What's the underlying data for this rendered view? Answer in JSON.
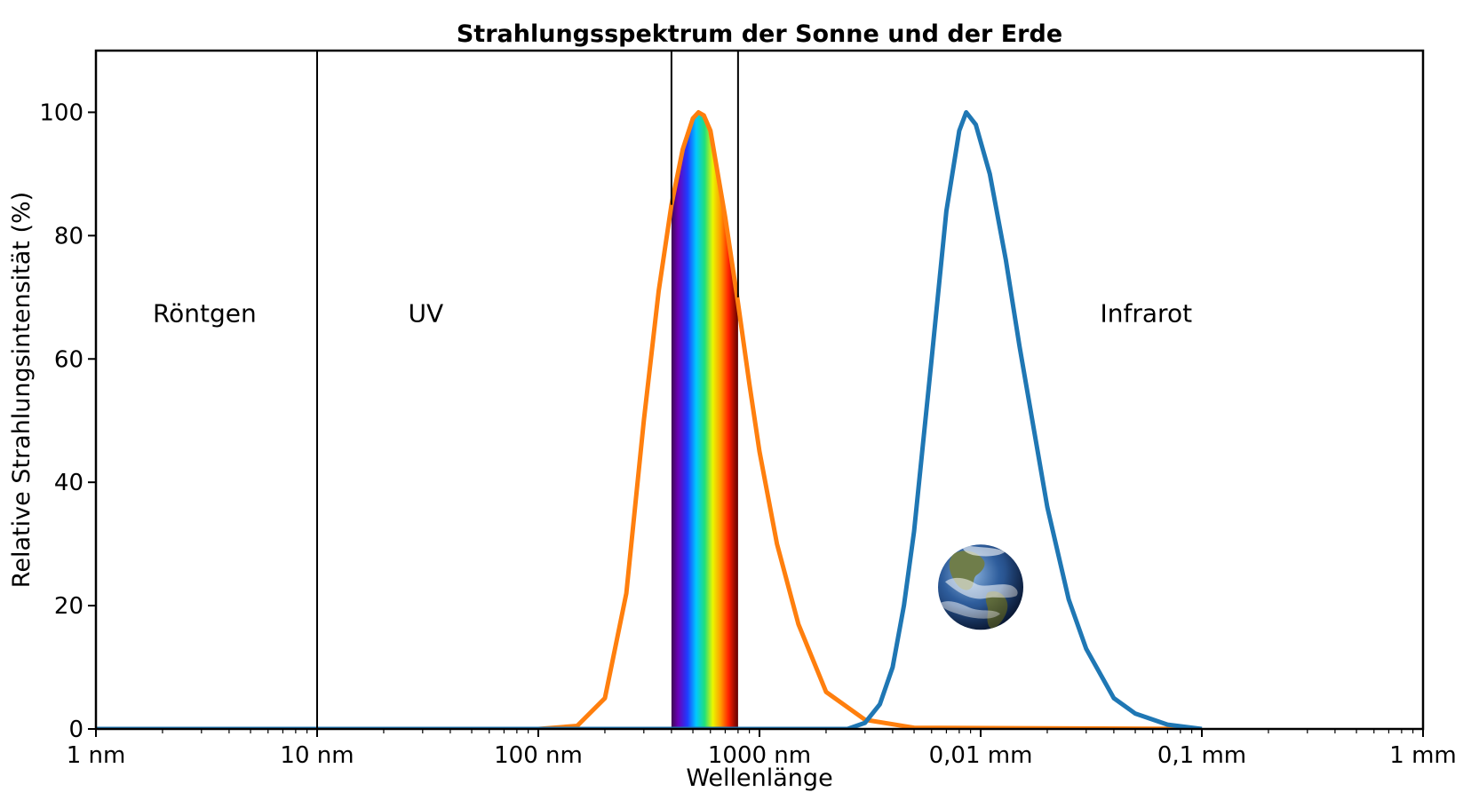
{
  "chart_data": {
    "type": "line",
    "title": "Strahlungsspektrum der Sonne und der Erde",
    "xlabel": "Wellenlänge",
    "ylabel": "Relative Strahlungsintensität (%)",
    "x_scale": "log",
    "x_unit": "nm",
    "xlim": [
      1,
      1000000
    ],
    "ylim": [
      0,
      110
    ],
    "grid": false,
    "x_ticks": [
      {
        "value": 1,
        "label": "1 nm"
      },
      {
        "value": 10,
        "label": "10 nm"
      },
      {
        "value": 100,
        "label": "100 nm"
      },
      {
        "value": 1000,
        "label": "1000 nm"
      },
      {
        "value": 10000,
        "label": "0,01 mm"
      },
      {
        "value": 100000,
        "label": "0,1 mm"
      },
      {
        "value": 1000000,
        "label": "1 mm"
      }
    ],
    "y_ticks": [
      0,
      20,
      40,
      60,
      80,
      100
    ],
    "series": [
      {
        "key": "sun",
        "color": "#ff7f0e",
        "points": [
          [
            1,
            0
          ],
          [
            100,
            0
          ],
          [
            150,
            0.5
          ],
          [
            200,
            5
          ],
          [
            250,
            22
          ],
          [
            300,
            50
          ],
          [
            350,
            71
          ],
          [
            400,
            85
          ],
          [
            450,
            94
          ],
          [
            500,
            99
          ],
          [
            530,
            100
          ],
          [
            560,
            99.5
          ],
          [
            600,
            97
          ],
          [
            700,
            83
          ],
          [
            800,
            69
          ],
          [
            900,
            56
          ],
          [
            1000,
            45
          ],
          [
            1200,
            30
          ],
          [
            1500,
            17
          ],
          [
            2000,
            6
          ],
          [
            3000,
            1.5
          ],
          [
            5000,
            0.2
          ],
          [
            100000,
            0
          ]
        ]
      },
      {
        "key": "earth",
        "color": "#1f77b4",
        "points": [
          [
            1,
            0
          ],
          [
            2500,
            0
          ],
          [
            3000,
            1
          ],
          [
            3500,
            4
          ],
          [
            4000,
            10
          ],
          [
            4500,
            20
          ],
          [
            5000,
            32
          ],
          [
            6000,
            60
          ],
          [
            7000,
            84
          ],
          [
            8000,
            97
          ],
          [
            8600,
            100
          ],
          [
            9500,
            98
          ],
          [
            11000,
            90
          ],
          [
            13000,
            76
          ],
          [
            15000,
            62
          ],
          [
            20000,
            36
          ],
          [
            25000,
            21
          ],
          [
            30000,
            13
          ],
          [
            40000,
            5
          ],
          [
            50000,
            2.5
          ],
          [
            70000,
            0.7
          ],
          [
            100000,
            0
          ]
        ]
      }
    ],
    "visible_band": {
      "start": 400,
      "end": 800,
      "spectrum": "violet-blue-cyan-green-yellow-orange-red"
    },
    "vertical_lines": [
      {
        "x": 10,
        "from": 0,
        "to": 110
      },
      {
        "x": 400,
        "from": 85,
        "to": 110
      },
      {
        "x": 800,
        "from": 70,
        "to": 110
      }
    ],
    "region_labels": [
      {
        "text": "Röntgen",
        "x": 3.1,
        "y": 66
      },
      {
        "text": "UV",
        "x": 31,
        "y": 66
      },
      {
        "text": "Infrarot",
        "x": 56000,
        "y": 66
      }
    ],
    "earth_icon": {
      "x": 10000,
      "y": 23
    }
  }
}
